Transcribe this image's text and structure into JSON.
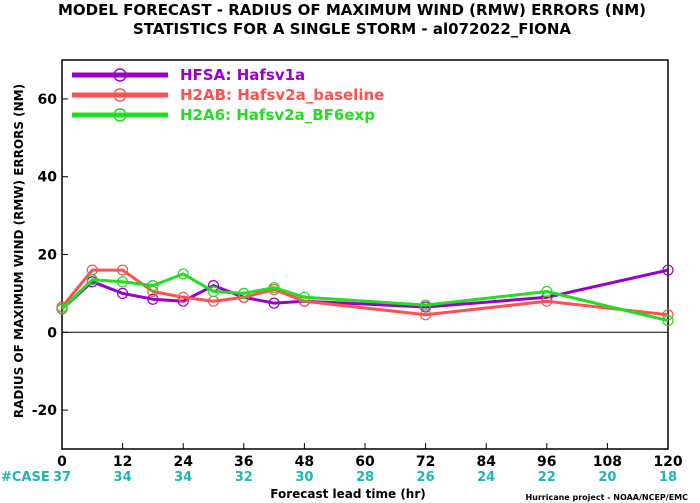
{
  "chart_data": {
    "type": "line",
    "title": "MODEL FORECAST - RADIUS OF MAXIMUM WIND (RMW) ERRORS (NM)",
    "subtitle": "STATISTICS FOR A SINGLE STORM - al072022_FIONA",
    "xlabel": "Forecast lead time (hr)",
    "ylabel": "RADIUS OF MAXIMUM WIND (RMW) ERRORS (NM)",
    "xlim": [
      0,
      120
    ],
    "ylim": [
      -30,
      70
    ],
    "xticks": [
      0,
      12,
      24,
      36,
      48,
      60,
      72,
      84,
      96,
      108,
      120
    ],
    "yticks": [
      -20,
      0,
      20,
      40,
      60
    ],
    "zero_line": true,
    "legend_position": "top-left",
    "case_label": "#CASE",
    "cases": [
      37,
      34,
      34,
      32,
      30,
      28,
      26,
      24,
      22,
      20,
      18
    ],
    "credit": "Hurricane project - NOAA/NCEP/EMC",
    "series": [
      {
        "name": "HFSA: Hafsv1a",
        "color": "#9a00cc",
        "x": [
          0,
          6,
          12,
          18,
          24,
          30,
          36,
          42,
          48,
          72,
          96,
          120
        ],
        "values": [
          6,
          13,
          10,
          8.5,
          8,
          12,
          9,
          7.5,
          8,
          6.5,
          9,
          16
        ]
      },
      {
        "name": "H2AB: Hafsv2a_baseline",
        "color": "#ff5050",
        "x": [
          0,
          6,
          12,
          18,
          24,
          30,
          36,
          42,
          48,
          72,
          96,
          120
        ],
        "values": [
          6.5,
          16,
          16,
          10.5,
          9,
          8,
          9,
          11,
          8,
          4.5,
          8,
          4.5
        ]
      },
      {
        "name": "H2A6: Hafsv2a_BF6exp",
        "color": "#22dd22",
        "x": [
          0,
          6,
          12,
          18,
          24,
          30,
          36,
          42,
          48,
          72,
          96,
          120
        ],
        "values": [
          6,
          13.5,
          13,
          12,
          15,
          10.5,
          10,
          11.5,
          9,
          7,
          10.5,
          3
        ]
      }
    ]
  }
}
